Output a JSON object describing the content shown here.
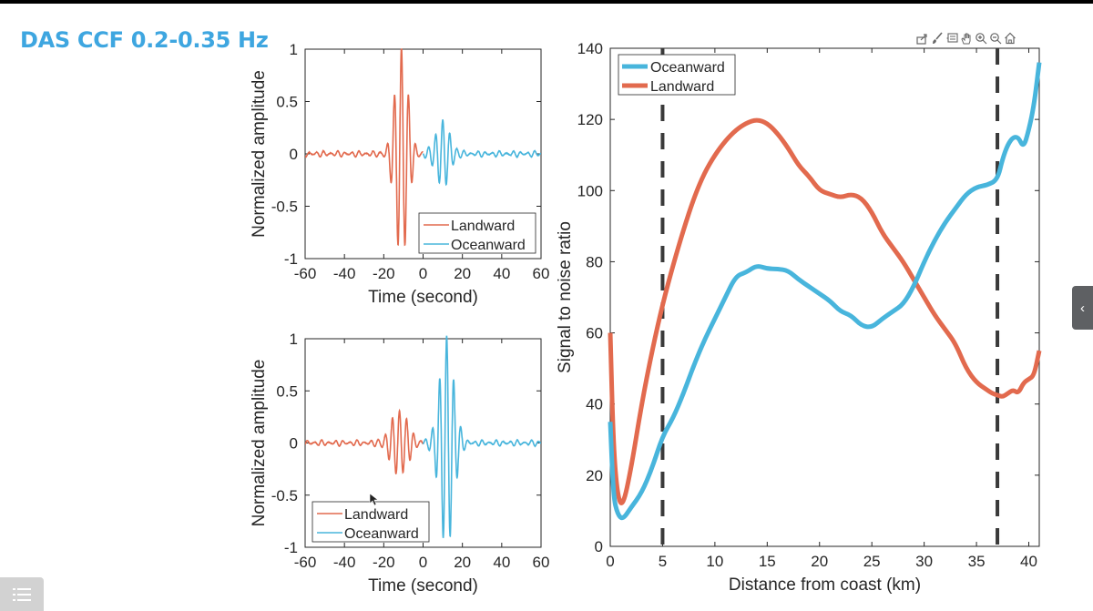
{
  "slide": {
    "title": "DAS CCF 0.2-0.35 Hz"
  },
  "toolbar": {
    "icons": [
      "export-icon",
      "brush-icon",
      "datatip-icon",
      "pan-hand-icon",
      "zoom-in-icon",
      "zoom-out-icon",
      "home-icon"
    ]
  },
  "ui": {
    "side_toggle_icon": "chevron-left-icon",
    "menu_icon": "list-menu-icon"
  },
  "colors": {
    "landward": "#e26a4e",
    "oceanward": "#48b5dc",
    "title": "#3ea6e0"
  },
  "chart_data": [
    {
      "type": "line",
      "title": "",
      "xlabel": "Time (second)",
      "ylabel": "Normalized amplitude",
      "xlim": [
        -60,
        60
      ],
      "ylim": [
        -1,
        1
      ],
      "xticks": [
        "-60",
        "-40",
        "-20",
        "0",
        "20",
        "40",
        "60"
      ],
      "yticks": [
        "-1",
        "-0.5",
        "0",
        "0.5",
        "1"
      ],
      "legend": {
        "placement": "bottom-right",
        "entries": [
          "Landward",
          "Oceanward"
        ]
      },
      "series": [
        {
          "name": "Landward",
          "color": "#e26a4e",
          "t_range": [
            -60,
            0
          ],
          "envelope_center": -11,
          "envelope_width": 4.5,
          "peak": 1.0,
          "period": 3.6,
          "noise": 0.03
        },
        {
          "name": "Oceanward",
          "color": "#48b5dc",
          "t_range": [
            0,
            60
          ],
          "envelope_center": 10,
          "envelope_width": 5,
          "peak": 0.3,
          "period": 3.6,
          "noise": 0.03
        }
      ]
    },
    {
      "type": "line",
      "title": "",
      "xlabel": "Time (second)",
      "ylabel": "Normalized amplitude",
      "xlim": [
        -60,
        60
      ],
      "ylim": [
        -1,
        1
      ],
      "xticks": [
        "-60",
        "-40",
        "-20",
        "0",
        "20",
        "40",
        "60"
      ],
      "yticks": [
        "-1",
        "-0.5",
        "0",
        "0.5",
        "1"
      ],
      "legend": {
        "placement": "bottom-left",
        "entries": [
          "Landward",
          "Oceanward"
        ]
      },
      "series": [
        {
          "name": "Landward",
          "color": "#e26a4e",
          "t_range": [
            -60,
            0
          ],
          "envelope_center": -12,
          "envelope_width": 6,
          "peak": 0.3,
          "period": 3.6,
          "noise": 0.03
        },
        {
          "name": "Oceanward",
          "color": "#48b5dc",
          "t_range": [
            0,
            60
          ],
          "envelope_center": 12,
          "envelope_width": 5,
          "peak": 1.0,
          "period": 3.6,
          "noise": 0.03
        }
      ]
    },
    {
      "type": "line",
      "title": "",
      "xlabel": "Distance from coast (km)",
      "ylabel": "Signal to noise ratio",
      "xlim": [
        0,
        41
      ],
      "ylim": [
        0,
        140
      ],
      "xticks": [
        "0",
        "5",
        "10",
        "15",
        "20",
        "25",
        "30",
        "35",
        "40"
      ],
      "yticks": [
        "0",
        "20",
        "40",
        "60",
        "80",
        "100",
        "120",
        "140"
      ],
      "legend": {
        "placement": "top-left",
        "entries": [
          "Oceanward",
          "Landward"
        ]
      },
      "vlines": [
        5,
        37
      ],
      "series": [
        {
          "name": "Oceanward",
          "color": "#48b5dc",
          "x": [
            0,
            0.3,
            0.7,
            1.2,
            2,
            3,
            4,
            5,
            6,
            7,
            8,
            9,
            10,
            11,
            12,
            13,
            14,
            15,
            16,
            17,
            18,
            19,
            20,
            21,
            22,
            23,
            24,
            25,
            26,
            27,
            28,
            29,
            30,
            31,
            32,
            33,
            34,
            35,
            36,
            37,
            37.5,
            38,
            38.5,
            39,
            39.5,
            40,
            40.5,
            41
          ],
          "y": [
            35,
            14,
            9,
            7.5,
            11,
            15,
            22,
            31,
            36,
            43,
            51,
            58,
            64,
            70,
            76,
            77,
            79,
            78,
            78,
            77.5,
            75,
            73,
            71,
            69,
            66,
            65,
            62,
            61.5,
            64,
            66,
            68,
            73,
            80,
            86,
            91,
            95,
            99,
            101,
            101.5,
            103,
            109,
            113,
            115,
            115,
            112,
            117,
            124,
            136
          ]
        },
        {
          "name": "Landward",
          "color": "#e26a4e",
          "x": [
            0,
            0.3,
            0.7,
            1.2,
            2,
            3,
            4,
            5,
            6,
            7,
            8,
            9,
            10,
            11,
            12,
            13,
            14,
            15,
            16,
            17,
            18,
            19,
            20,
            21,
            22,
            23,
            24,
            25,
            26,
            27,
            28,
            29,
            30,
            31,
            32,
            33,
            34,
            35,
            36,
            36.5,
            37,
            37.5,
            38,
            38.5,
            39,
            39.5,
            40,
            40.5,
            41
          ],
          "y": [
            60,
            28,
            14,
            11,
            22,
            40,
            55,
            68,
            79,
            89,
            98,
            105,
            110,
            114,
            117,
            119,
            120,
            119,
            116,
            112,
            107,
            104,
            100,
            99,
            98,
            99,
            98,
            94,
            88,
            84,
            80,
            75,
            70,
            65,
            61,
            57,
            50,
            46,
            44,
            43,
            42.5,
            42,
            43,
            44,
            43,
            46,
            47,
            48,
            55
          ]
        }
      ]
    }
  ]
}
